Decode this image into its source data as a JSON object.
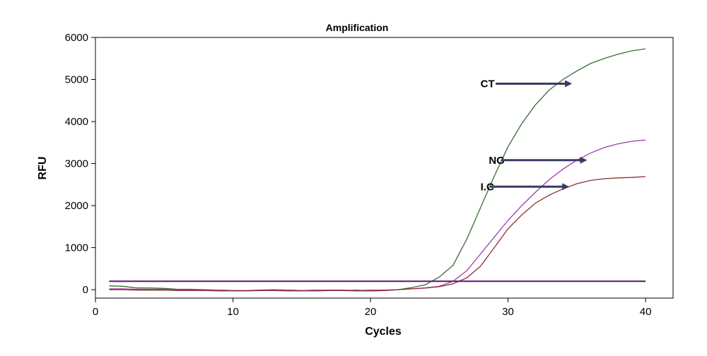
{
  "chart_data": {
    "type": "line",
    "title": "Amplification",
    "xlabel": "Cycles",
    "ylabel": "RFU",
    "xlim": [
      0,
      42
    ],
    "ylim": [
      -200,
      6000
    ],
    "xticks": [
      0,
      10,
      20,
      30,
      40
    ],
    "yticks": [
      0,
      1000,
      2000,
      3000,
      4000,
      5000,
      6000
    ],
    "grid": false,
    "threshold": {
      "value": 200,
      "x_range": [
        1,
        40
      ],
      "color": "#6b1f7a"
    },
    "series": [
      {
        "name": "CT",
        "color": "#3a6b35",
        "x": [
          1,
          2,
          3,
          4,
          5,
          6,
          7,
          8,
          9,
          10,
          11,
          12,
          13,
          14,
          15,
          16,
          17,
          18,
          19,
          20,
          21,
          22,
          23,
          24,
          25,
          26,
          27,
          28,
          29,
          30,
          31,
          32,
          33,
          34,
          35,
          36,
          37,
          38,
          39,
          40
        ],
        "values": [
          90,
          80,
          40,
          40,
          30,
          10,
          10,
          0,
          -10,
          -20,
          -30,
          -10,
          0,
          -10,
          -20,
          -30,
          -10,
          -20,
          -10,
          -30,
          -20,
          0,
          50,
          120,
          300,
          580,
          1200,
          1950,
          2700,
          3400,
          3950,
          4400,
          4750,
          5000,
          5200,
          5380,
          5500,
          5600,
          5680,
          5730
        ]
      },
      {
        "name": "NG",
        "color": "#9b3fae",
        "x": [
          1,
          2,
          3,
          4,
          5,
          6,
          7,
          8,
          9,
          10,
          11,
          12,
          13,
          14,
          15,
          16,
          17,
          18,
          19,
          20,
          21,
          22,
          23,
          24,
          25,
          26,
          27,
          28,
          29,
          30,
          31,
          32,
          33,
          34,
          35,
          36,
          37,
          38,
          39,
          40
        ],
        "values": [
          20,
          20,
          10,
          10,
          10,
          0,
          0,
          -10,
          -10,
          -20,
          -20,
          -10,
          -10,
          -10,
          -20,
          -10,
          -10,
          -10,
          -20,
          -10,
          -10,
          0,
          20,
          40,
          80,
          200,
          450,
          850,
          1250,
          1650,
          2000,
          2320,
          2620,
          2870,
          3080,
          3250,
          3380,
          3470,
          3530,
          3560
        ]
      },
      {
        "name": "I.C",
        "color": "#8e2f2f",
        "x": [
          1,
          2,
          3,
          4,
          5,
          6,
          7,
          8,
          9,
          10,
          11,
          12,
          13,
          14,
          15,
          16,
          17,
          18,
          19,
          20,
          21,
          22,
          23,
          24,
          25,
          26,
          27,
          28,
          29,
          30,
          31,
          32,
          33,
          34,
          35,
          36,
          37,
          38,
          39,
          40
        ],
        "values": [
          0,
          0,
          -10,
          -10,
          -10,
          -20,
          -20,
          -20,
          -30,
          -30,
          -30,
          -20,
          -20,
          -30,
          -30,
          -30,
          -20,
          -20,
          -30,
          -30,
          -20,
          0,
          20,
          40,
          70,
          140,
          280,
          560,
          1000,
          1450,
          1780,
          2060,
          2250,
          2400,
          2520,
          2600,
          2640,
          2660,
          2670,
          2690
        ]
      }
    ],
    "annotations": [
      {
        "label": "CT",
        "x": 28,
        "y": 4900,
        "arrow_from": [
          29.1,
          4900
        ],
        "arrow_to": [
          34.5,
          4900
        ]
      },
      {
        "label": "NG",
        "x": 28.6,
        "y": 3080,
        "arrow_from": [
          29.5,
          3080
        ],
        "arrow_to": [
          35.6,
          3080
        ]
      },
      {
        "label": "I.C",
        "x": 28,
        "y": 2450,
        "arrow_from": [
          28.7,
          2450
        ],
        "arrow_to": [
          34.3,
          2450
        ]
      }
    ],
    "annotation_color": "#3b3b66"
  }
}
